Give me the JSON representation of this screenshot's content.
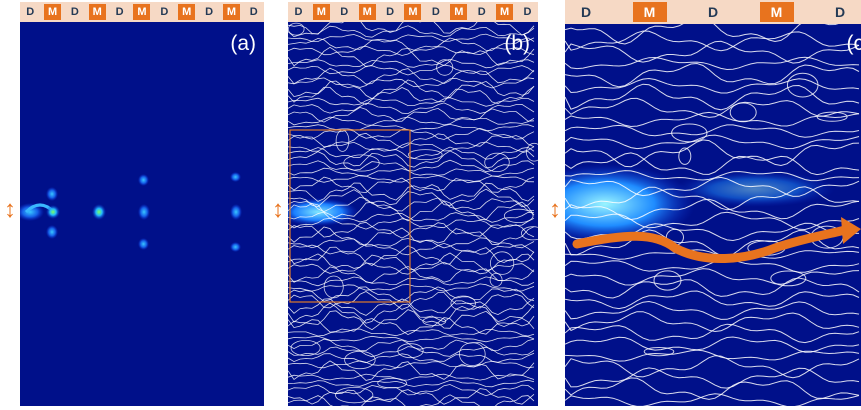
{
  "panels": [
    {
      "label": "(a)",
      "strip": [
        "D",
        "M",
        "D",
        "M",
        "D",
        "M",
        "D",
        "M",
        "D",
        "M",
        "D"
      ]
    },
    {
      "label": "(b)",
      "strip": [
        "D",
        "M",
        "D",
        "M",
        "D",
        "M",
        "D",
        "M",
        "D",
        "M",
        "D"
      ]
    },
    {
      "label": "(c)",
      "strip": [
        "D",
        "M",
        "D",
        "M",
        "D"
      ]
    }
  ],
  "input_indicator": "↕",
  "colors": {
    "background_field": "#00108a",
    "streamline": "#ffffff",
    "highlight_box": "#e07b2a",
    "flow_arrow": "#e8731e",
    "strip_bg": "#f6d9c5",
    "metal_cell": "#e8731e"
  }
}
